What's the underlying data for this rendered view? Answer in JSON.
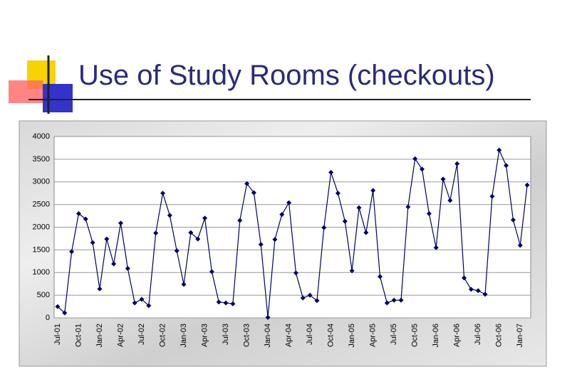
{
  "title": "Use of Study Rooms (checkouts)",
  "chart_data": {
    "type": "line",
    "color": "#000066",
    "grid": true,
    "categories": [
      "Jul-01",
      null,
      null,
      "Oct-01",
      null,
      null,
      "Jan-02",
      null,
      null,
      "Apr-02",
      null,
      null,
      "Jul-02",
      null,
      null,
      "Oct-02",
      null,
      null,
      "Jan-03",
      null,
      null,
      "Apr-03",
      null,
      null,
      "Jul-03",
      null,
      null,
      "Oct-03",
      null,
      null,
      "Jan-04",
      null,
      null,
      "Apr-04",
      null,
      null,
      "Jul-04",
      null,
      null,
      "Oct-04",
      null,
      null,
      "Jan-05",
      null,
      null,
      "Apr-05",
      null,
      null,
      "Jul-05",
      null,
      null,
      "Oct-05",
      null,
      null,
      "Jan-06",
      null,
      null,
      "Apr-06",
      null,
      null,
      "Jul-06",
      null,
      null,
      "Oct-06",
      null,
      null,
      "Jan-07",
      null
    ],
    "values": [
      250,
      110,
      1460,
      2300,
      2180,
      1660,
      640,
      1740,
      1190,
      2090,
      1090,
      330,
      410,
      270,
      1870,
      2750,
      2260,
      1480,
      740,
      1880,
      1740,
      2200,
      1020,
      350,
      330,
      310,
      2150,
      2960,
      2760,
      1620,
      10,
      1730,
      2280,
      2540,
      990,
      440,
      500,
      380,
      1990,
      3210,
      2750,
      2130,
      1040,
      2430,
      1880,
      2810,
      910,
      330,
      390,
      390,
      2450,
      3510,
      3280,
      2300,
      1550,
      3060,
      2590,
      3400,
      880,
      630,
      600,
      520,
      2680,
      3700,
      3360,
      2160,
      1600,
      2930
    ],
    "ylim": [
      0,
      4000
    ],
    "yticks": [
      0,
      500,
      1000,
      1500,
      2000,
      2500,
      3000,
      3500,
      4000
    ]
  }
}
